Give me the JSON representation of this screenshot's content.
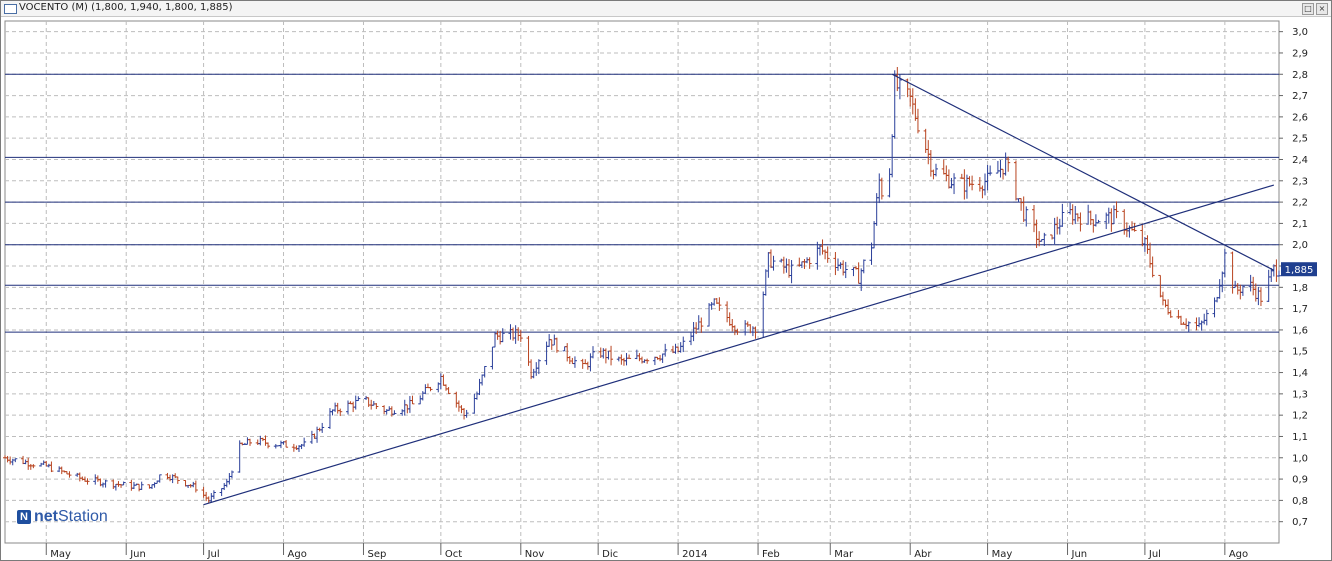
{
  "window": {
    "title": "VOCENTO (M) (1,800, 1,940, 1,800, 1,885)",
    "restore_icon": "restore-icon",
    "close_icon": "close-icon"
  },
  "watermark": {
    "brand_prefix": "net",
    "brand_suffix": "Station",
    "icon": "netstation-logo-icon"
  },
  "colors": {
    "up_bar": "#2a3f9a",
    "down_bar": "#b8431f",
    "trendline": "#1f2f7a",
    "level_line": "#1f2f7a",
    "grid": "#bdbdbd",
    "last_price_badge": "#1f3f8f"
  },
  "chart_data": {
    "type": "ohlc",
    "series_name": "VOCENTO",
    "last_price": 1.885,
    "last_price_label": "1,885",
    "ylim": [
      0.6,
      3.05
    ],
    "y_ticks": [
      "3,0",
      "2,9",
      "2,8",
      "2,7",
      "2,6",
      "2,5",
      "2,4",
      "2,3",
      "2,2",
      "2,1",
      "2,0",
      "1,9",
      "1,8",
      "1,7",
      "1,6",
      "1,5",
      "1,4",
      "1,3",
      "1,2",
      "1,1",
      "1,0",
      "0,9",
      "0,8",
      "0,7"
    ],
    "x_labels": [
      "May",
      "Jun",
      "Jul",
      "Ago",
      "Sep",
      "Oct",
      "Nov",
      "Dic",
      "2014",
      "Feb",
      "Mar",
      "Abr",
      "May",
      "Jun",
      "Jul",
      "Ago"
    ],
    "x_start": "2013-04-15",
    "x_end": "2014-08-22",
    "month_starts": [
      "2013-05-01",
      "2013-06-01",
      "2013-07-01",
      "2013-08-01",
      "2013-09-01",
      "2013-10-01",
      "2013-11-01",
      "2013-12-01",
      "2014-01-01",
      "2014-02-01",
      "2014-03-01",
      "2014-04-01",
      "2014-05-01",
      "2014-06-01",
      "2014-07-01",
      "2014-08-01"
    ],
    "horizontal_levels": [
      2.8,
      2.41,
      2.2,
      2.0,
      1.81,
      1.59
    ],
    "trendlines": [
      {
        "from": [
          "2013-07-01",
          0.78
        ],
        "to": [
          "2014-08-20",
          2.28
        ]
      },
      {
        "from": [
          "2014-03-25",
          2.8
        ],
        "to": [
          "2014-08-20",
          1.88
        ]
      }
    ],
    "price_path": [
      [
        "2013-04-15",
        1.0
      ],
      [
        "2013-05-01",
        0.96
      ],
      [
        "2013-05-15",
        0.9
      ],
      [
        "2013-06-01",
        0.87
      ],
      [
        "2013-06-10",
        0.86
      ],
      [
        "2013-06-15",
        0.93
      ],
      [
        "2013-06-28",
        0.86
      ],
      [
        "2013-07-03",
        0.8
      ],
      [
        "2013-07-10",
        0.88
      ],
      [
        "2013-07-15",
        1.05
      ],
      [
        "2013-07-20",
        1.08
      ],
      [
        "2013-08-01",
        1.06
      ],
      [
        "2013-08-10",
        1.06
      ],
      [
        "2013-08-20",
        1.22
      ],
      [
        "2013-09-01",
        1.27
      ],
      [
        "2013-09-10",
        1.22
      ],
      [
        "2013-09-20",
        1.25
      ],
      [
        "2013-10-01",
        1.38
      ],
      [
        "2013-10-10",
        1.2
      ],
      [
        "2013-10-15",
        1.3
      ],
      [
        "2013-10-22",
        1.57
      ],
      [
        "2013-11-01",
        1.58
      ],
      [
        "2013-11-05",
        1.4
      ],
      [
        "2013-11-12",
        1.56
      ],
      [
        "2013-11-25",
        1.42
      ],
      [
        "2013-12-01",
        1.5
      ],
      [
        "2013-12-10",
        1.45
      ],
      [
        "2014-01-01",
        1.5
      ],
      [
        "2014-01-15",
        1.72
      ],
      [
        "2014-01-25",
        1.6
      ],
      [
        "2014-02-01",
        1.62
      ],
      [
        "2014-02-05",
        1.93
      ],
      [
        "2014-02-15",
        1.87
      ],
      [
        "2014-02-25",
        1.98
      ],
      [
        "2014-03-05",
        1.9
      ],
      [
        "2014-03-12",
        1.85
      ],
      [
        "2014-03-17",
        2.0
      ],
      [
        "2014-03-20",
        2.3
      ],
      [
        "2014-03-23",
        2.15
      ],
      [
        "2014-03-26",
        2.75
      ],
      [
        "2014-04-01",
        2.68
      ],
      [
        "2014-04-10",
        2.35
      ],
      [
        "2014-04-20",
        2.28
      ],
      [
        "2014-05-01",
        2.3
      ],
      [
        "2014-05-08",
        2.38
      ],
      [
        "2014-05-15",
        2.15
      ],
      [
        "2014-05-22",
        2.0
      ],
      [
        "2014-06-01",
        2.15
      ],
      [
        "2014-06-10",
        2.12
      ],
      [
        "2014-06-20",
        2.13
      ],
      [
        "2014-07-01",
        2.0
      ],
      [
        "2014-07-08",
        1.72
      ],
      [
        "2014-07-15",
        1.65
      ],
      [
        "2014-07-22",
        1.61
      ],
      [
        "2014-07-28",
        1.72
      ],
      [
        "2014-08-01",
        1.95
      ],
      [
        "2014-08-05",
        1.78
      ],
      [
        "2014-08-10",
        1.82
      ],
      [
        "2014-08-15",
        1.75
      ],
      [
        "2014-08-20",
        1.885
      ]
    ]
  }
}
